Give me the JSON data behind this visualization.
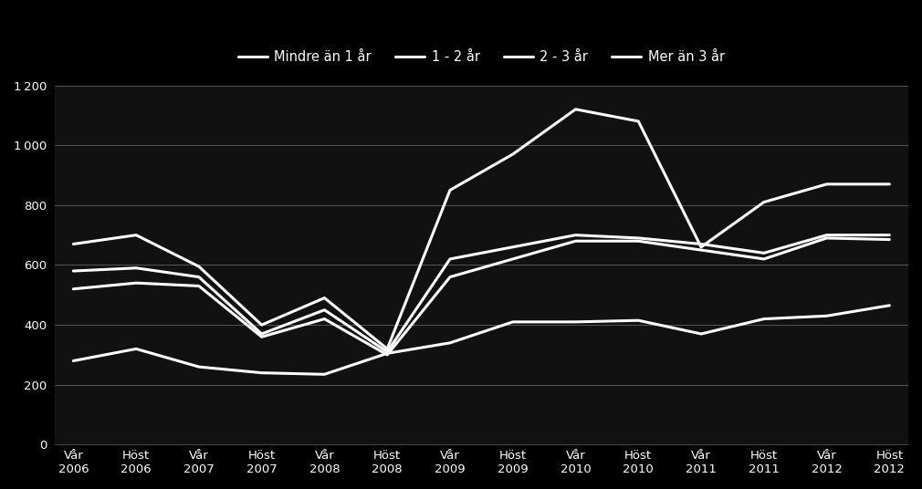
{
  "x_labels": [
    "Vår\n2006",
    "Höst\n2006",
    "Vår\n2007",
    "Höst\n2007",
    "Vår\n2008",
    "Höst\n2008",
    "Vår\n2009",
    "Höst\n2009",
    "Vår\n2010",
    "Höst\n2010",
    "Vår\n2011",
    "Höst\n2011",
    "Vår\n2012",
    "Höst\n2012"
  ],
  "series": [
    {
      "label": "Mindre än 1 år",
      "values": [
        670,
        700,
        595,
        400,
        490,
        320,
        850,
        970,
        1120,
        1080,
        660,
        810,
        870,
        870
      ]
    },
    {
      "label": "1 - 2 år",
      "values": [
        580,
        590,
        560,
        370,
        450,
        310,
        620,
        660,
        700,
        690,
        670,
        640,
        700,
        700
      ]
    },
    {
      "label": "2 - 3 år",
      "values": [
        520,
        540,
        530,
        360,
        420,
        300,
        560,
        620,
        680,
        680,
        650,
        620,
        690,
        685
      ]
    },
    {
      "label": "Mer än 3 år",
      "values": [
        280,
        320,
        260,
        240,
        235,
        305,
        340,
        410,
        410,
        415,
        370,
        420,
        430,
        465
      ]
    }
  ],
  "ylim": [
    0,
    1200
  ],
  "yticks": [
    0,
    200,
    400,
    600,
    800,
    1000,
    1200
  ],
  "background_color": "#000000",
  "plot_bg_color": "#111111",
  "line_color": "#ffffff",
  "text_color": "#ffffff",
  "grid_color": "#ffffff",
  "line_width": 2.2,
  "legend_fontsize": 10.5,
  "tick_fontsize": 9.5,
  "figsize": [
    10.1,
    5.36
  ],
  "dpi": 100
}
